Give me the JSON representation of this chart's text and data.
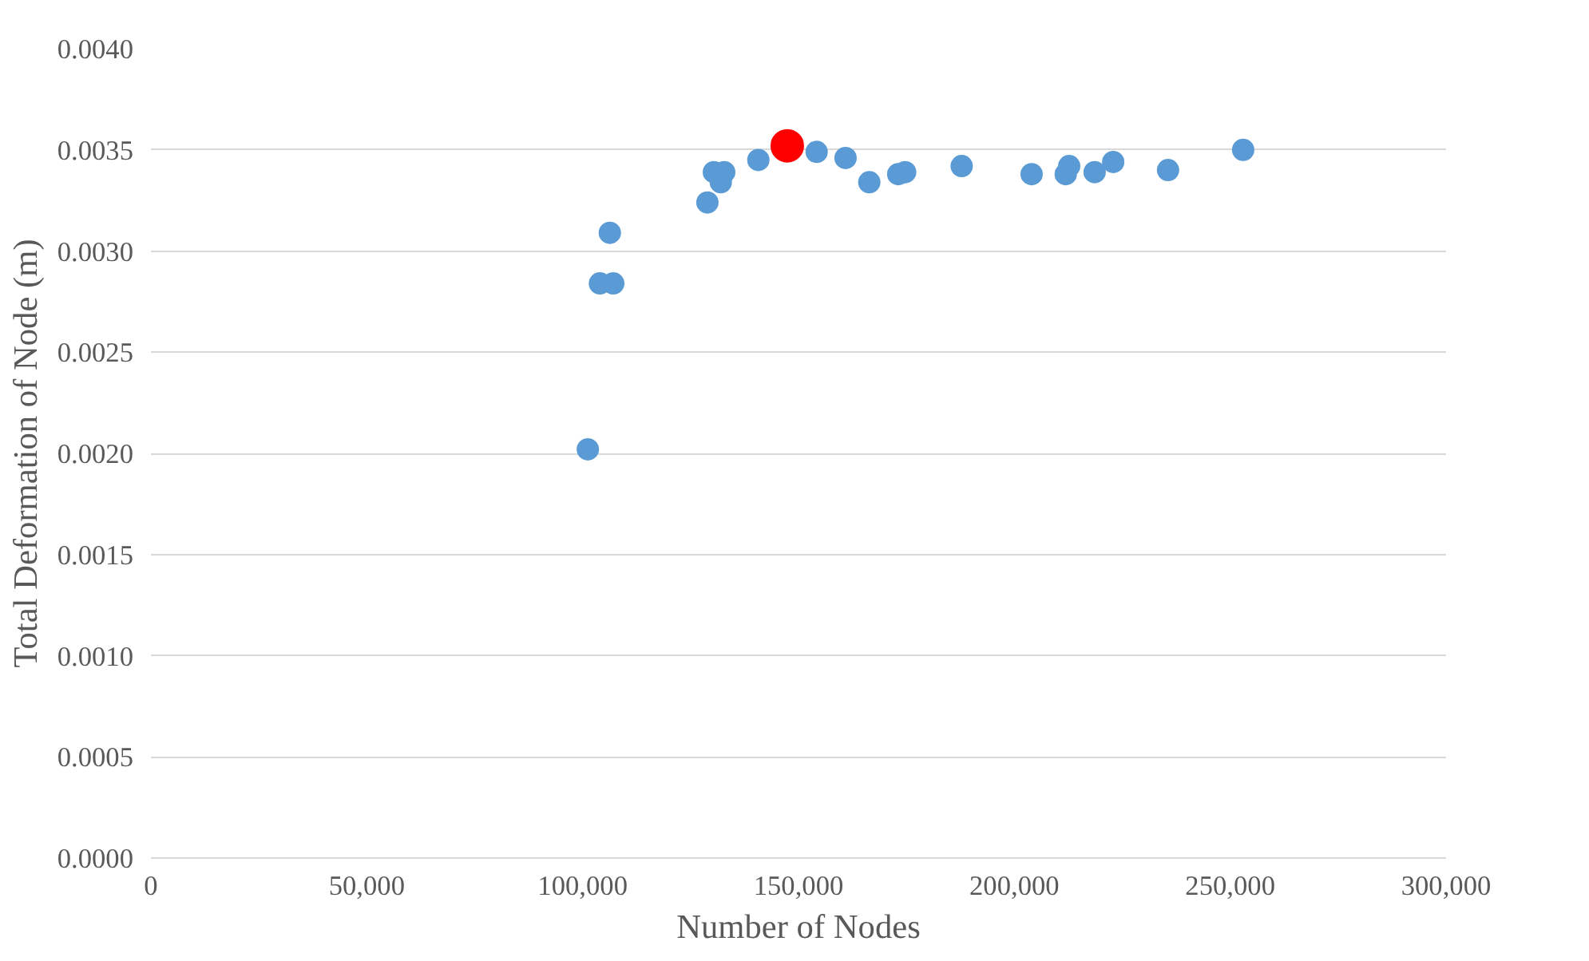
{
  "chart_data": {
    "type": "scatter",
    "xlabel": "Number of Nodes",
    "ylabel": "Total Deformation of Node (m)",
    "series": [
      {
        "color": "#5b9bd5",
        "marker": "circle",
        "x": [
          101200,
          104000,
          107100,
          106300,
          128900,
          130400,
          132800,
          132000,
          140700,
          154200,
          160900,
          166400,
          173100,
          174700,
          187800,
          204000,
          211900,
          212700,
          218600,
          222900,
          235600,
          253000
        ],
        "values": [
          0.00202,
          0.00284,
          0.00284,
          0.00309,
          0.00324,
          0.00339,
          0.00339,
          0.00334,
          0.00345,
          0.00349,
          0.00346,
          0.00334,
          0.00338,
          0.00339,
          0.00342,
          0.00338,
          0.00338,
          0.00342,
          0.00339,
          0.00344,
          0.0034,
          0.0035
        ]
      },
      {
        "color": "#ff0000",
        "marker": "circle",
        "x": [
          147400
        ],
        "values": [
          0.00352
        ]
      }
    ],
    "xlim": [
      0,
      300000
    ],
    "ylim": [
      0,
      0.004
    ],
    "xticks": [
      0,
      {
        "value": 50000,
        "label": "50,000"
      },
      {
        "value": 100000,
        "label": "100,000"
      },
      {
        "value": 150000,
        "label": "150,000"
      },
      {
        "value": 200000,
        "label": "200,000"
      },
      {
        "value": 250000,
        "label": "250,000"
      },
      {
        "value": 300000,
        "label": "300,000"
      }
    ],
    "yticks": [
      {
        "value": 0,
        "label": "0.0000"
      },
      {
        "value": 0.0005,
        "label": "0.0005"
      },
      {
        "value": 0.001,
        "label": "0.0010"
      },
      {
        "value": 0.0015,
        "label": "0.0015"
      },
      {
        "value": 0.002,
        "label": "0.0020"
      },
      {
        "value": 0.0025,
        "label": "0.0025"
      },
      {
        "value": 0.003,
        "label": "0.0030"
      },
      {
        "value": 0.0035,
        "label": "0.0035"
      },
      {
        "value": 0.004,
        "label": "0.0040"
      }
    ],
    "grid": "y"
  }
}
